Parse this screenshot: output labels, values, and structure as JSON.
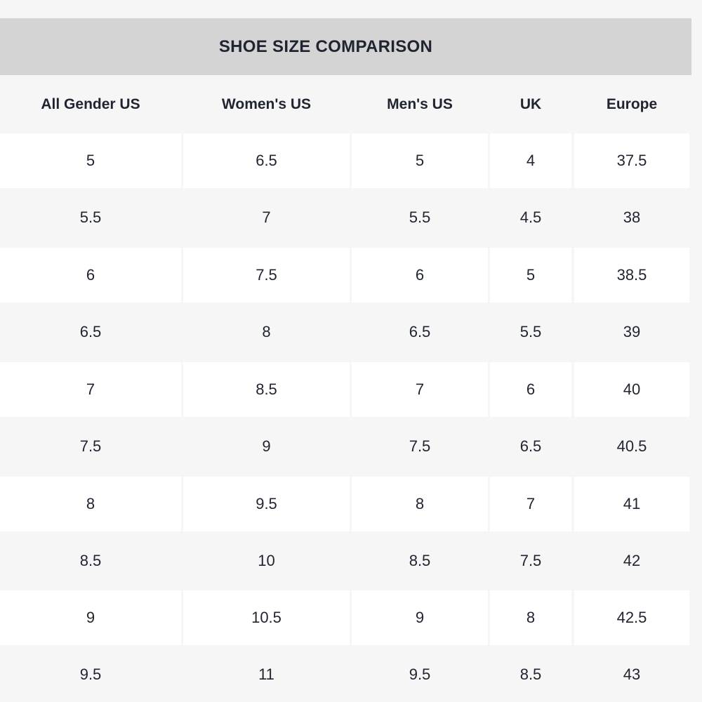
{
  "table": {
    "title": "SHOE SIZE COMPARISON",
    "columns": [
      "All Gender US",
      "Women's US",
      "Men's US",
      "UK",
      "Europe"
    ],
    "rows": [
      [
        "5",
        "6.5",
        "5",
        "4",
        "37.5"
      ],
      [
        "5.5",
        "7",
        "5.5",
        "4.5",
        "38"
      ],
      [
        "6",
        "7.5",
        "6",
        "5",
        "38.5"
      ],
      [
        "6.5",
        "8",
        "6.5",
        "5.5",
        "39"
      ],
      [
        "7",
        "8.5",
        "7",
        "6",
        "40"
      ],
      [
        "7.5",
        "9",
        "7.5",
        "6.5",
        "40.5"
      ],
      [
        "8",
        "9.5",
        "8",
        "7",
        "41"
      ],
      [
        "8.5",
        "10",
        "8.5",
        "7.5",
        "42"
      ],
      [
        "9",
        "10.5",
        "9",
        "8",
        "42.5"
      ],
      [
        "9.5",
        "11",
        "9.5",
        "8.5",
        "43"
      ]
    ]
  },
  "colors": {
    "title_background": "#d4d4d4",
    "row_white": "#ffffff",
    "row_gray": "#f6f6f7",
    "text": "#1f2430"
  }
}
